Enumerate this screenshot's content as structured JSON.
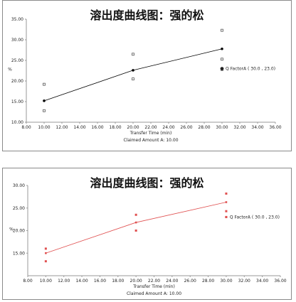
{
  "chart_data": [
    {
      "type": "scatter",
      "title": "溶出度曲线图：强的松",
      "xlabel": "Transfer Time (min)",
      "footer": "Claimed Amount A: 10.00",
      "ylabel": "%",
      "xlim": [
        8.0,
        36.0
      ],
      "ylim": [
        10.0,
        35.0
      ],
      "x_ticks": [
        "8.00",
        "10.00",
        "12.00",
        "14.00",
        "16.00",
        "18.00",
        "20.00",
        "22.00",
        "24.00",
        "26.00",
        "28.00",
        "30.00",
        "32.00",
        "34.00",
        "36.00"
      ],
      "y_ticks": [
        "10.00",
        "15.00",
        "20.00",
        "25.00",
        "30.00",
        "35.00"
      ],
      "series": [
        {
          "points": [
            [
              10,
              19.2
            ],
            [
              10,
              12.8
            ],
            [
              20,
              26.5
            ],
            [
              20,
              20.5
            ],
            [
              30,
              32.3
            ],
            [
              30,
              25.3
            ],
            [
              30,
              22.8
            ]
          ]
        },
        {
          "points": [
            [
              10,
              15.2
            ],
            [
              20,
              22.6
            ],
            [
              30,
              27.8
            ]
          ]
        }
      ],
      "q_factor": {
        "label": "Q FactorA ( 30.0 , 23.0)",
        "x": 30,
        "y": 23
      },
      "colors": {
        "line": "#000000",
        "markers": "#555555",
        "axis": "#9a9a9a"
      }
    },
    {
      "type": "scatter",
      "title": "溶出度曲线图：强的松",
      "xlabel": "Transfer Time (min)",
      "footer": "Claimed Amount A: 10.00",
      "ylabel": "%",
      "xlim": [
        8.0,
        36.0
      ],
      "ylim": [
        10.0,
        30.0
      ],
      "x_ticks": [
        "8.00",
        "10.00",
        "12.00",
        "14.00",
        "16.00",
        "18.00",
        "20.00",
        "22.00",
        "24.00",
        "26.00",
        "28.00",
        "30.00",
        "32.00",
        "34.00",
        "36.00"
      ],
      "y_ticks": [
        "15.00",
        "20.00",
        "25.00",
        "30.00"
      ],
      "series": [
        {
          "points": [
            [
              10,
              16.0
            ],
            [
              10,
              13.2
            ],
            [
              20,
              23.5
            ],
            [
              20,
              20.0
            ],
            [
              30,
              28.2
            ],
            [
              30,
              24.3
            ],
            [
              30,
              23.0
            ]
          ]
        },
        {
          "points": [
            [
              10,
              15.0
            ],
            [
              20,
              21.8
            ],
            [
              30,
              26.3
            ]
          ]
        }
      ],
      "q_factor": {
        "label": "Q FactorA ( 30.0 , 23.0)",
        "x": 30,
        "y": 23
      },
      "colors": {
        "line": "#e05050",
        "markers": "#e05050",
        "axis": "#9a9a9a"
      }
    }
  ]
}
